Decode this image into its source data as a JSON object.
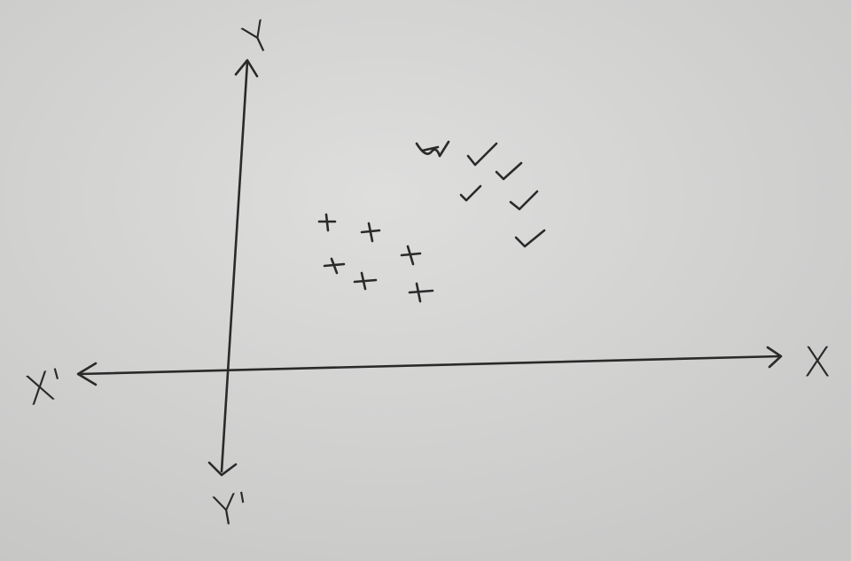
{
  "axes": {
    "y_top": "Y",
    "y_bottom": "Y'",
    "x_right": "X",
    "x_left": "X'"
  }
}
